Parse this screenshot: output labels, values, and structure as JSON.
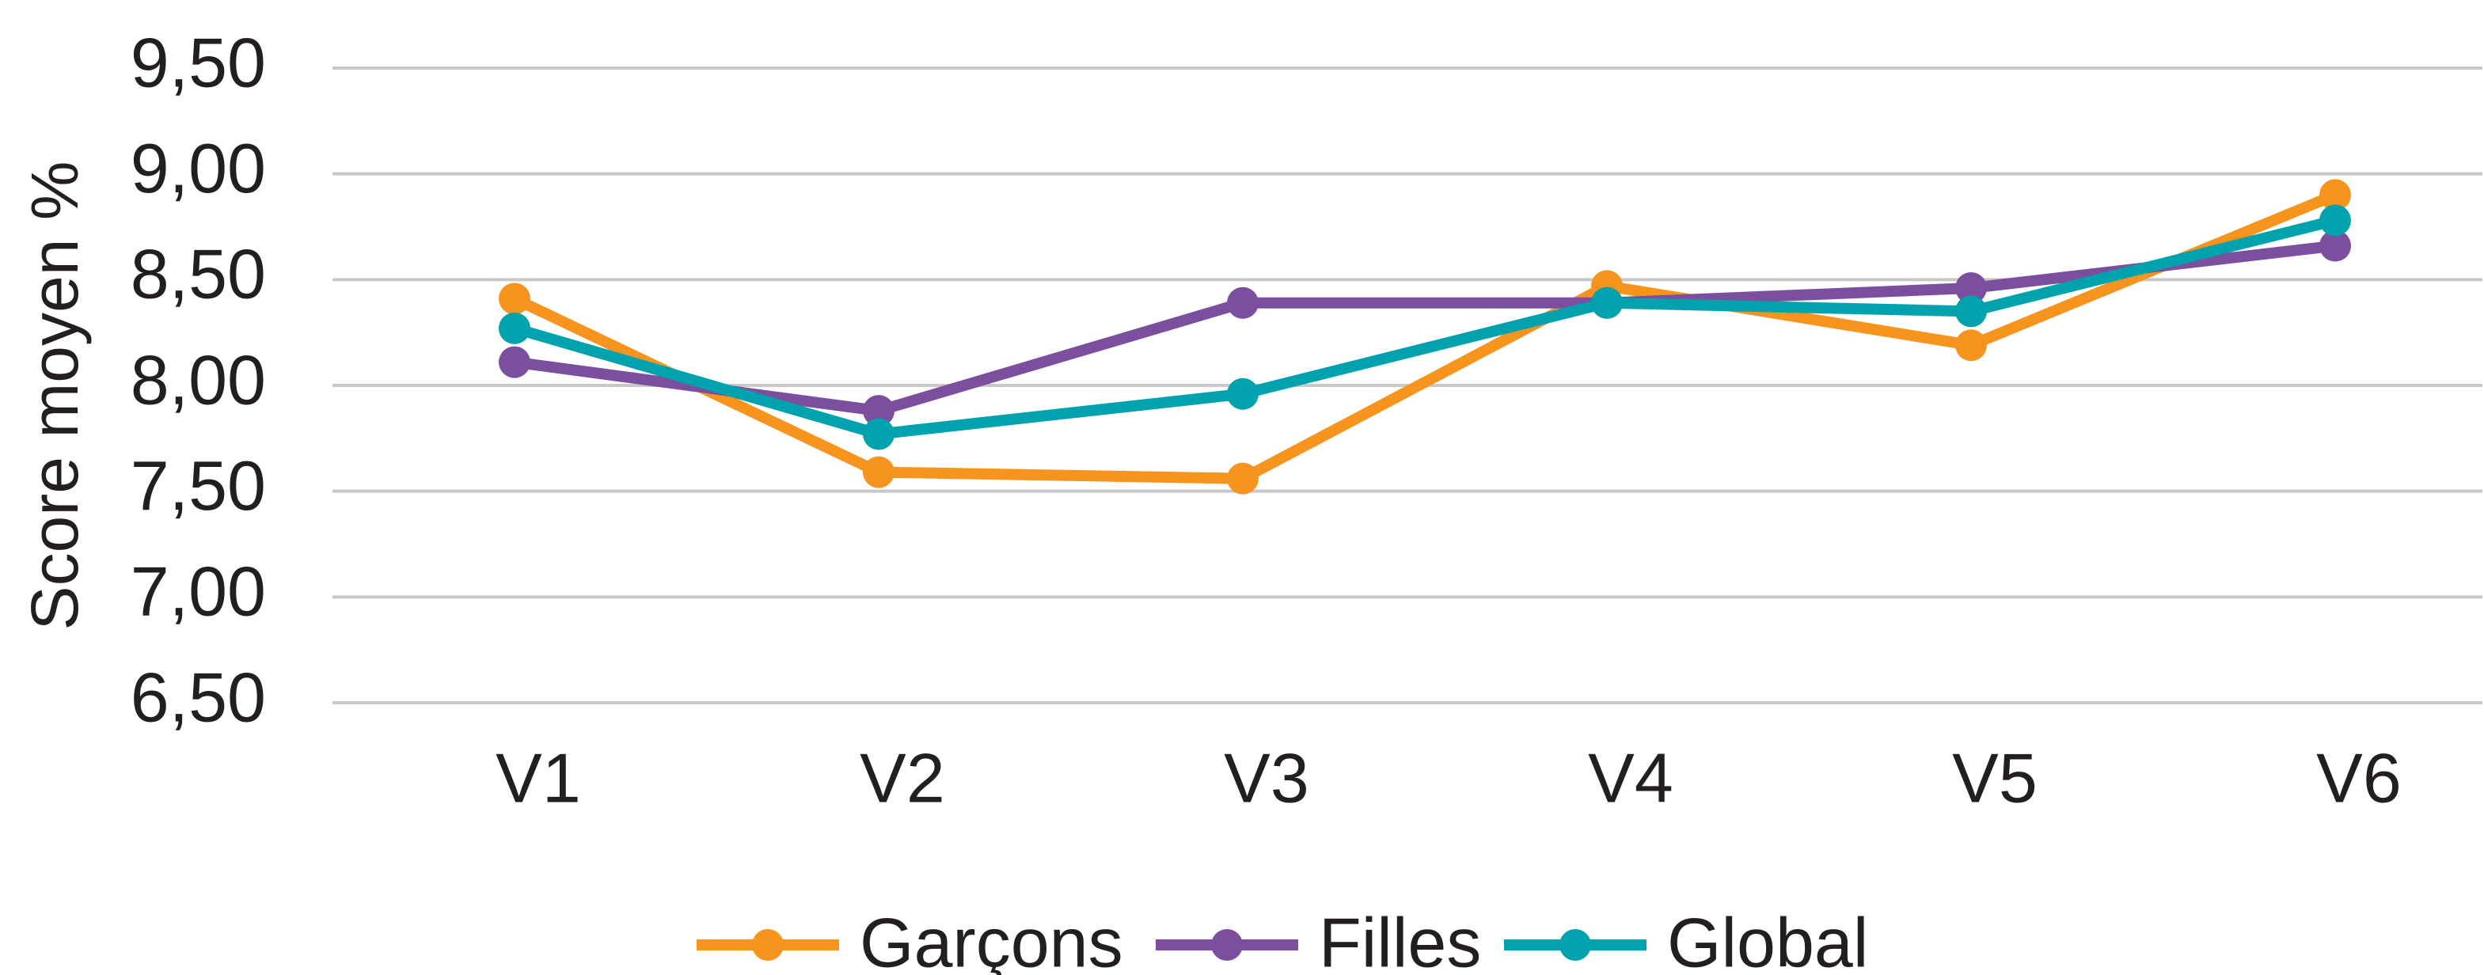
{
  "chart_data": {
    "type": "line",
    "ylabel": "Score moyen %",
    "categories": [
      "V1",
      "V2",
      "V3",
      "V4",
      "V5",
      "V6"
    ],
    "series": [
      {
        "name": "Garçons",
        "color": "#f7941d",
        "values": [
          8.41,
          7.59,
          7.56,
          8.47,
          8.19,
          8.9
        ]
      },
      {
        "name": "Filles",
        "color": "#7b4f9e",
        "values": [
          8.11,
          7.88,
          8.39,
          8.39,
          8.46,
          8.66
        ]
      },
      {
        "name": "Global",
        "color": "#00a3ad",
        "values": [
          8.27,
          7.77,
          7.96,
          8.39,
          8.35,
          8.78
        ]
      }
    ],
    "ylim": [
      6.5,
      9.5
    ],
    "yticks": [
      {
        "value": 6.5,
        "label": "6,50"
      },
      {
        "value": 7,
        "label": "7,00"
      },
      {
        "value": 7.5,
        "label": "7,50"
      },
      {
        "value": 8,
        "label": "8,00"
      },
      {
        "value": 8.5,
        "label": "8,50"
      },
      {
        "value": 9,
        "label": "9,00"
      },
      {
        "value": 9.5,
        "label": "9,50"
      }
    ],
    "grid": true,
    "legend": "bottom"
  }
}
